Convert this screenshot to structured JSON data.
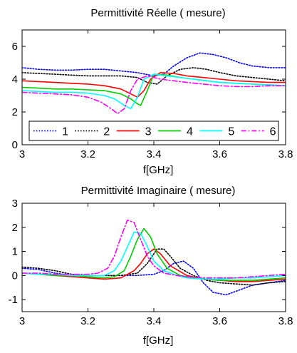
{
  "figure": {
    "charts": [
      {
        "id": "real",
        "title": "Permittivité Réelle ( mesure)",
        "xlabel": "f[GHz]",
        "ylabel": ""
      },
      {
        "id": "imag",
        "title": "Permittivité Imaginaire ( mesure)",
        "xlabel": "f[GHz]",
        "ylabel": ""
      }
    ]
  },
  "chart_data": [
    {
      "type": "line",
      "title": "Permittivité Réelle ( mesure)",
      "xlabel": "f[GHz]",
      "ylabel": "",
      "xlim": [
        3,
        3.8
      ],
      "ylim": [
        0,
        7
      ],
      "xticks": [
        "3",
        "3.2",
        "3.4",
        "3.6",
        "3.8"
      ],
      "yticks": [
        "0",
        "2",
        "4",
        "6"
      ],
      "xtick_values": [
        3,
        3.2,
        3.4,
        3.6,
        3.8
      ],
      "ytick_values": [
        0,
        2,
        4,
        6
      ],
      "grid": false,
      "legend": {
        "placement": "bottom-inside",
        "orientation": "horizontal"
      },
      "series": [
        {
          "name": "1",
          "color": "#0000ff",
          "dash": "dotted",
          "x": [
            3.0,
            3.05,
            3.1,
            3.15,
            3.2,
            3.25,
            3.3,
            3.35,
            3.4,
            3.43,
            3.46,
            3.5,
            3.54,
            3.58,
            3.62,
            3.66,
            3.7,
            3.75,
            3.8
          ],
          "y": [
            4.7,
            4.6,
            4.55,
            4.55,
            4.6,
            4.6,
            4.5,
            4.4,
            4.2,
            4.3,
            4.8,
            5.3,
            5.6,
            5.5,
            5.3,
            5.0,
            4.8,
            4.7,
            4.7
          ]
        },
        {
          "name": "2",
          "color": "#000000",
          "dash": "dotted",
          "x": [
            3.0,
            3.05,
            3.1,
            3.15,
            3.2,
            3.25,
            3.3,
            3.35,
            3.38,
            3.41,
            3.44,
            3.48,
            3.52,
            3.56,
            3.6,
            3.65,
            3.7,
            3.75,
            3.8
          ],
          "y": [
            4.4,
            4.35,
            4.3,
            4.25,
            4.2,
            4.2,
            4.2,
            4.1,
            3.8,
            3.7,
            4.2,
            4.6,
            4.7,
            4.6,
            4.4,
            4.2,
            4.1,
            4.0,
            3.9
          ]
        },
        {
          "name": "3",
          "color": "#ff0000",
          "dash": "solid",
          "x": [
            3.0,
            3.05,
            3.1,
            3.15,
            3.2,
            3.25,
            3.3,
            3.33,
            3.35,
            3.37,
            3.39,
            3.42,
            3.46,
            3.5,
            3.55,
            3.6,
            3.65,
            3.7,
            3.75,
            3.8
          ],
          "y": [
            3.9,
            3.85,
            3.8,
            3.75,
            3.7,
            3.6,
            3.4,
            3.1,
            2.9,
            3.3,
            4.0,
            4.4,
            4.35,
            4.2,
            4.1,
            4.0,
            3.9,
            3.85,
            3.8,
            3.8
          ]
        },
        {
          "name": "4",
          "color": "#00cc00",
          "dash": "solid",
          "x": [
            3.0,
            3.05,
            3.1,
            3.15,
            3.2,
            3.25,
            3.3,
            3.33,
            3.35,
            3.36,
            3.38,
            3.4,
            3.44,
            3.48,
            3.52,
            3.56,
            3.6,
            3.65,
            3.7,
            3.75,
            3.8
          ],
          "y": [
            3.5,
            3.45,
            3.4,
            3.4,
            3.35,
            3.3,
            3.1,
            2.8,
            2.5,
            2.4,
            3.3,
            4.3,
            4.25,
            4.1,
            4.0,
            3.9,
            3.8,
            3.75,
            3.7,
            3.65,
            3.6
          ]
        },
        {
          "name": "5",
          "color": "#00ffff",
          "dash": "solid",
          "x": [
            3.0,
            3.05,
            3.1,
            3.15,
            3.2,
            3.25,
            3.28,
            3.31,
            3.33,
            3.35,
            3.37,
            3.4,
            3.44,
            3.48,
            3.52,
            3.56,
            3.6,
            3.65,
            3.7,
            3.75,
            3.8
          ],
          "y": [
            3.3,
            3.25,
            3.2,
            3.2,
            3.15,
            3.0,
            2.8,
            2.4,
            2.2,
            2.9,
            4.0,
            4.3,
            4.2,
            4.1,
            4.0,
            3.9,
            3.8,
            3.75,
            3.7,
            3.65,
            3.6
          ]
        },
        {
          "name": "6",
          "color": "#ff00ff",
          "dash": "dashdot",
          "x": [
            3.0,
            3.05,
            3.1,
            3.15,
            3.2,
            3.24,
            3.27,
            3.29,
            3.31,
            3.33,
            3.35,
            3.38,
            3.42,
            3.46,
            3.5,
            3.55,
            3.6,
            3.65,
            3.7,
            3.75,
            3.8
          ],
          "y": [
            3.2,
            3.15,
            3.1,
            3.05,
            2.9,
            2.6,
            2.2,
            1.9,
            2.2,
            3.3,
            4.0,
            4.2,
            4.0,
            3.9,
            3.8,
            3.7,
            3.6,
            3.55,
            3.55,
            3.6,
            3.6
          ]
        }
      ]
    },
    {
      "type": "line",
      "title": "Permittivité Imaginaire ( mesure)",
      "xlabel": "f[GHz]",
      "ylabel": "",
      "xlim": [
        3,
        3.8
      ],
      "ylim": [
        -1.5,
        3
      ],
      "xticks": [
        "3",
        "3.2",
        "3.4",
        "3.6",
        "3.8"
      ],
      "yticks": [
        "-1",
        "0",
        "1",
        "2",
        "3"
      ],
      "xtick_values": [
        3,
        3.2,
        3.4,
        3.6,
        3.8
      ],
      "ytick_values": [
        -1,
        0,
        1,
        2,
        3
      ],
      "grid": false,
      "legend": null,
      "series": [
        {
          "name": "1",
          "color": "#0000ff",
          "dash": "dotted",
          "x": [
            3.0,
            3.05,
            3.1,
            3.15,
            3.2,
            3.25,
            3.3,
            3.35,
            3.4,
            3.43,
            3.46,
            3.49,
            3.52,
            3.55,
            3.58,
            3.62,
            3.66,
            3.7,
            3.75,
            3.8
          ],
          "y": [
            0.3,
            0.25,
            0.1,
            0.0,
            0.0,
            0.0,
            0.0,
            0.0,
            0.05,
            0.2,
            0.5,
            0.6,
            0.3,
            -0.3,
            -0.7,
            -0.8,
            -0.6,
            -0.4,
            -0.3,
            -0.2
          ]
        },
        {
          "name": "2",
          "color": "#000000",
          "dash": "dotted",
          "x": [
            3.0,
            3.05,
            3.1,
            3.15,
            3.2,
            3.25,
            3.3,
            3.35,
            3.38,
            3.41,
            3.43,
            3.45,
            3.48,
            3.52,
            3.56,
            3.6,
            3.65,
            3.7,
            3.75,
            3.8
          ],
          "y": [
            0.35,
            0.3,
            0.2,
            0.05,
            0.0,
            0.0,
            0.0,
            0.1,
            0.5,
            1.1,
            1.1,
            0.8,
            0.3,
            0.0,
            -0.2,
            -0.3,
            -0.35,
            -0.4,
            -0.3,
            -0.25
          ]
        },
        {
          "name": "3",
          "color": "#ff0000",
          "dash": "solid",
          "x": [
            3.0,
            3.05,
            3.1,
            3.15,
            3.2,
            3.25,
            3.3,
            3.34,
            3.36,
            3.38,
            3.4,
            3.42,
            3.45,
            3.5,
            3.55,
            3.6,
            3.65,
            3.7,
            3.75,
            3.8
          ],
          "y": [
            0.1,
            0.05,
            0.0,
            -0.05,
            -0.1,
            -0.15,
            -0.1,
            0.2,
            0.5,
            0.9,
            1.1,
            0.9,
            0.4,
            0.0,
            -0.15,
            -0.2,
            -0.25,
            -0.25,
            -0.2,
            -0.15
          ]
        },
        {
          "name": "4",
          "color": "#00cc00",
          "dash": "solid",
          "x": [
            3.0,
            3.05,
            3.1,
            3.15,
            3.2,
            3.25,
            3.28,
            3.31,
            3.33,
            3.35,
            3.37,
            3.39,
            3.41,
            3.44,
            3.48,
            3.52,
            3.56,
            3.6,
            3.65,
            3.7,
            3.75,
            3.8
          ],
          "y": [
            0.1,
            0.05,
            0.0,
            0.0,
            -0.05,
            -0.1,
            -0.05,
            0.2,
            0.8,
            1.5,
            1.95,
            1.6,
            0.9,
            0.3,
            0.0,
            -0.1,
            -0.15,
            -0.2,
            -0.2,
            -0.2,
            -0.15,
            -0.1
          ]
        },
        {
          "name": "5",
          "color": "#00ffff",
          "dash": "solid",
          "x": [
            3.0,
            3.05,
            3.1,
            3.15,
            3.2,
            3.25,
            3.28,
            3.3,
            3.32,
            3.34,
            3.36,
            3.38,
            3.4,
            3.43,
            3.47,
            3.5,
            3.55,
            3.6,
            3.65,
            3.7,
            3.75,
            3.8
          ],
          "y": [
            0.1,
            0.05,
            0.05,
            0.0,
            0.0,
            0.0,
            0.2,
            0.6,
            1.2,
            1.8,
            1.75,
            1.2,
            0.6,
            0.2,
            0.0,
            -0.1,
            -0.15,
            -0.15,
            -0.1,
            -0.1,
            -0.05,
            0.0
          ]
        },
        {
          "name": "6",
          "color": "#ff00ff",
          "dash": "dashdot",
          "x": [
            3.0,
            3.05,
            3.1,
            3.15,
            3.2,
            3.23,
            3.26,
            3.28,
            3.3,
            3.32,
            3.34,
            3.36,
            3.38,
            3.4,
            3.43,
            3.47,
            3.5,
            3.55,
            3.6,
            3.65,
            3.7,
            3.75,
            3.8
          ],
          "y": [
            0.1,
            0.1,
            0.05,
            0.05,
            0.05,
            0.1,
            0.3,
            0.8,
            1.6,
            2.3,
            2.2,
            1.5,
            0.8,
            0.4,
            0.1,
            0.0,
            -0.05,
            -0.1,
            -0.1,
            -0.1,
            -0.05,
            0.0,
            0.05
          ]
        }
      ]
    }
  ]
}
